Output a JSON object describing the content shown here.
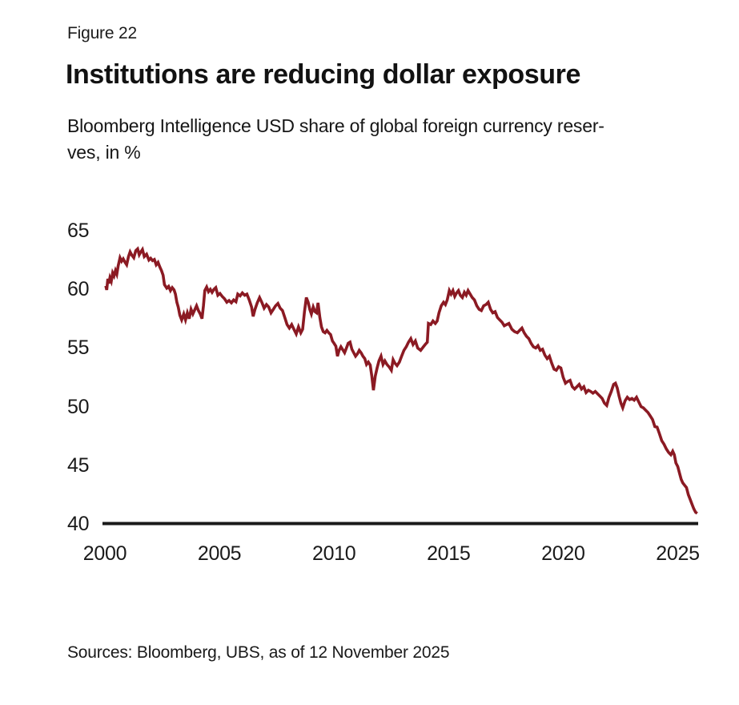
{
  "figure_label": "Figure 22",
  "title": "Institutions are reducing dollar exposure",
  "subtitle_line1": "Bloomberg Intelligence USD share of global foreign currency reser-",
  "subtitle_line2": "ves, in %",
  "source": "Sources: Bloomberg, UBS, as of 12 November 2025",
  "chart_data": {
    "type": "line",
    "title": "Institutions are reducing dollar exposure",
    "subtitle": "Bloomberg Intelligence USD share of global foreign currency reserves, in %",
    "xlabel": "",
    "ylabel": "USD share of global foreign currency reserves, %",
    "x_ticks": [
      "2000",
      "2005",
      "2010",
      "2015",
      "2020",
      "2025"
    ],
    "y_ticks": [
      "65",
      "60",
      "55",
      "50",
      "45",
      "40"
    ],
    "xlim": [
      2000,
      2025.9
    ],
    "ylim": [
      40,
      65
    ],
    "grid": false,
    "legend": "none",
    "line_color": "#8b1a23",
    "axis_color": "#1a1a1a",
    "series": [
      {
        "name": "USD share of global FX reserves (%)",
        "points": [
          [
            2000.04,
            60.3
          ],
          [
            2000.08,
            59.95
          ],
          [
            2000.13,
            60.9
          ],
          [
            2000.17,
            60.5
          ],
          [
            2000.22,
            61.0
          ],
          [
            2000.28,
            60.7
          ],
          [
            2000.34,
            61.4
          ],
          [
            2000.4,
            61.15
          ],
          [
            2000.46,
            61.6
          ],
          [
            2000.52,
            61.3
          ],
          [
            2000.58,
            62.0
          ],
          [
            2000.66,
            62.7
          ],
          [
            2000.73,
            62.4
          ],
          [
            2000.8,
            62.6
          ],
          [
            2000.88,
            62.3
          ],
          [
            2000.95,
            62.1
          ],
          [
            2001.03,
            62.8
          ],
          [
            2001.1,
            63.2
          ],
          [
            2001.18,
            62.9
          ],
          [
            2001.26,
            62.7
          ],
          [
            2001.35,
            63.3
          ],
          [
            2001.43,
            63.45
          ],
          [
            2001.5,
            62.95
          ],
          [
            2001.57,
            63.2
          ],
          [
            2001.64,
            63.4
          ],
          [
            2001.72,
            62.8
          ],
          [
            2001.82,
            63.0
          ],
          [
            2001.92,
            62.5
          ],
          [
            2002.0,
            62.65
          ],
          [
            2002.08,
            62.45
          ],
          [
            2002.16,
            62.55
          ],
          [
            2002.24,
            62.1
          ],
          [
            2002.32,
            62.3
          ],
          [
            2002.4,
            61.9
          ],
          [
            2002.47,
            61.6
          ],
          [
            2002.54,
            61.2
          ],
          [
            2002.6,
            60.4
          ],
          [
            2002.7,
            60.1
          ],
          [
            2002.78,
            60.25
          ],
          [
            2002.86,
            59.9
          ],
          [
            2002.94,
            60.15
          ],
          [
            2003.02,
            59.95
          ],
          [
            2003.08,
            59.6
          ],
          [
            2003.14,
            58.9
          ],
          [
            2003.2,
            58.5
          ],
          [
            2003.27,
            57.8
          ],
          [
            2003.35,
            57.4
          ],
          [
            2003.44,
            57.9
          ],
          [
            2003.52,
            57.4
          ],
          [
            2003.6,
            58.0
          ],
          [
            2003.68,
            57.5
          ],
          [
            2003.76,
            58.3
          ],
          [
            2003.84,
            57.9
          ],
          [
            2003.92,
            58.25
          ],
          [
            2004.0,
            58.6
          ],
          [
            2004.08,
            58.2
          ],
          [
            2004.16,
            57.9
          ],
          [
            2004.24,
            57.5
          ],
          [
            2004.3,
            58.6
          ],
          [
            2004.36,
            59.9
          ],
          [
            2004.44,
            60.2
          ],
          [
            2004.52,
            59.8
          ],
          [
            2004.6,
            60.0
          ],
          [
            2004.68,
            59.75
          ],
          [
            2004.76,
            60.0
          ],
          [
            2004.84,
            60.15
          ],
          [
            2004.93,
            59.5
          ],
          [
            2005.02,
            59.65
          ],
          [
            2005.12,
            59.4
          ],
          [
            2005.22,
            59.2
          ],
          [
            2005.32,
            58.9
          ],
          [
            2005.42,
            59.05
          ],
          [
            2005.52,
            58.85
          ],
          [
            2005.62,
            59.1
          ],
          [
            2005.72,
            58.95
          ],
          [
            2005.8,
            59.6
          ],
          [
            2005.9,
            59.45
          ],
          [
            2006.0,
            59.7
          ],
          [
            2006.1,
            59.5
          ],
          [
            2006.2,
            59.6
          ],
          [
            2006.3,
            59.1
          ],
          [
            2006.4,
            58.5
          ],
          [
            2006.47,
            57.7
          ],
          [
            2006.55,
            58.3
          ],
          [
            2006.65,
            58.85
          ],
          [
            2006.75,
            59.3
          ],
          [
            2006.85,
            58.9
          ],
          [
            2006.95,
            58.4
          ],
          [
            2007.05,
            58.7
          ],
          [
            2007.15,
            58.5
          ],
          [
            2007.25,
            58.0
          ],
          [
            2007.35,
            58.3
          ],
          [
            2007.45,
            58.6
          ],
          [
            2007.55,
            58.8
          ],
          [
            2007.65,
            58.4
          ],
          [
            2007.75,
            58.2
          ],
          [
            2007.85,
            57.6
          ],
          [
            2007.95,
            57.0
          ],
          [
            2008.05,
            56.7
          ],
          [
            2008.15,
            57.0
          ],
          [
            2008.25,
            56.6
          ],
          [
            2008.35,
            56.2
          ],
          [
            2008.45,
            56.8
          ],
          [
            2008.55,
            56.3
          ],
          [
            2008.63,
            56.6
          ],
          [
            2008.71,
            58.1
          ],
          [
            2008.79,
            59.3
          ],
          [
            2008.87,
            58.9
          ],
          [
            2008.94,
            58.3
          ],
          [
            2009.01,
            57.9
          ],
          [
            2009.09,
            58.5
          ],
          [
            2009.17,
            58.1
          ],
          [
            2009.24,
            58.0
          ],
          [
            2009.3,
            58.85
          ],
          [
            2009.38,
            57.6
          ],
          [
            2009.45,
            56.8
          ],
          [
            2009.53,
            56.4
          ],
          [
            2009.61,
            56.3
          ],
          [
            2009.69,
            56.5
          ],
          [
            2009.77,
            56.3
          ],
          [
            2009.85,
            56.15
          ],
          [
            2009.93,
            55.6
          ],
          [
            2010.0,
            55.4
          ],
          [
            2010.08,
            55.15
          ],
          [
            2010.15,
            54.3
          ],
          [
            2010.22,
            54.8
          ],
          [
            2010.3,
            55.1
          ],
          [
            2010.38,
            54.85
          ],
          [
            2010.46,
            54.6
          ],
          [
            2010.54,
            55.0
          ],
          [
            2010.62,
            55.4
          ],
          [
            2010.7,
            55.5
          ],
          [
            2010.78,
            54.9
          ],
          [
            2010.86,
            54.6
          ],
          [
            2010.94,
            54.3
          ],
          [
            2011.02,
            54.5
          ],
          [
            2011.1,
            54.8
          ],
          [
            2011.18,
            54.6
          ],
          [
            2011.26,
            54.3
          ],
          [
            2011.34,
            54.1
          ],
          [
            2011.42,
            53.6
          ],
          [
            2011.5,
            53.8
          ],
          [
            2011.58,
            53.55
          ],
          [
            2011.65,
            52.6
          ],
          [
            2011.72,
            51.4
          ],
          [
            2011.8,
            52.6
          ],
          [
            2011.88,
            53.3
          ],
          [
            2011.96,
            53.9
          ],
          [
            2012.05,
            54.3
          ],
          [
            2012.14,
            53.6
          ],
          [
            2012.22,
            53.9
          ],
          [
            2012.31,
            53.6
          ],
          [
            2012.4,
            53.4
          ],
          [
            2012.5,
            53.1
          ],
          [
            2012.58,
            54.0
          ],
          [
            2012.66,
            53.7
          ],
          [
            2012.75,
            53.5
          ],
          [
            2012.85,
            53.8
          ],
          [
            2012.95,
            54.3
          ],
          [
            2013.05,
            54.8
          ],
          [
            2013.15,
            55.1
          ],
          [
            2013.25,
            55.5
          ],
          [
            2013.35,
            55.8
          ],
          [
            2013.45,
            55.3
          ],
          [
            2013.55,
            55.6
          ],
          [
            2013.65,
            55.0
          ],
          [
            2013.78,
            54.8
          ],
          [
            2013.9,
            55.1
          ],
          [
            2014.0,
            55.35
          ],
          [
            2014.07,
            55.5
          ],
          [
            2014.12,
            57.1
          ],
          [
            2014.22,
            57.0
          ],
          [
            2014.32,
            57.3
          ],
          [
            2014.42,
            57.1
          ],
          [
            2014.5,
            57.3
          ],
          [
            2014.58,
            58.0
          ],
          [
            2014.68,
            58.6
          ],
          [
            2014.78,
            58.9
          ],
          [
            2014.86,
            58.7
          ],
          [
            2014.94,
            59.1
          ],
          [
            2015.03,
            59.9
          ],
          [
            2015.11,
            59.6
          ],
          [
            2015.19,
            59.9
          ],
          [
            2015.27,
            59.4
          ],
          [
            2015.35,
            59.7
          ],
          [
            2015.43,
            59.9
          ],
          [
            2015.51,
            59.5
          ],
          [
            2015.6,
            59.3
          ],
          [
            2015.69,
            59.75
          ],
          [
            2015.77,
            59.5
          ],
          [
            2015.85,
            59.9
          ],
          [
            2015.94,
            59.6
          ],
          [
            2016.03,
            59.3
          ],
          [
            2016.13,
            59.1
          ],
          [
            2016.23,
            58.6
          ],
          [
            2016.33,
            58.3
          ],
          [
            2016.43,
            58.2
          ],
          [
            2016.53,
            58.6
          ],
          [
            2016.63,
            58.7
          ],
          [
            2016.73,
            58.9
          ],
          [
            2016.83,
            58.3
          ],
          [
            2016.93,
            58.0
          ],
          [
            2017.03,
            58.1
          ],
          [
            2017.13,
            57.6
          ],
          [
            2017.23,
            57.4
          ],
          [
            2017.33,
            57.2
          ],
          [
            2017.43,
            56.9
          ],
          [
            2017.53,
            57.0
          ],
          [
            2017.63,
            57.1
          ],
          [
            2017.76,
            56.6
          ],
          [
            2017.88,
            56.4
          ],
          [
            2018.0,
            56.3
          ],
          [
            2018.1,
            56.5
          ],
          [
            2018.2,
            56.7
          ],
          [
            2018.3,
            56.3
          ],
          [
            2018.4,
            56.0
          ],
          [
            2018.5,
            55.8
          ],
          [
            2018.6,
            55.4
          ],
          [
            2018.7,
            55.1
          ],
          [
            2018.8,
            55.0
          ],
          [
            2018.9,
            55.2
          ],
          [
            2019.0,
            54.8
          ],
          [
            2019.1,
            54.9
          ],
          [
            2019.2,
            54.4
          ],
          [
            2019.3,
            54.1
          ],
          [
            2019.4,
            54.3
          ],
          [
            2019.5,
            53.7
          ],
          [
            2019.6,
            53.2
          ],
          [
            2019.7,
            53.1
          ],
          [
            2019.8,
            53.4
          ],
          [
            2019.9,
            53.3
          ],
          [
            2020.0,
            52.5
          ],
          [
            2020.1,
            52.0
          ],
          [
            2020.2,
            52.15
          ],
          [
            2020.3,
            52.25
          ],
          [
            2020.4,
            51.7
          ],
          [
            2020.5,
            51.5
          ],
          [
            2020.6,
            51.7
          ],
          [
            2020.7,
            51.9
          ],
          [
            2020.8,
            51.5
          ],
          [
            2020.9,
            51.7
          ],
          [
            2021.0,
            51.2
          ],
          [
            2021.1,
            51.4
          ],
          [
            2021.2,
            51.3
          ],
          [
            2021.3,
            51.15
          ],
          [
            2021.4,
            51.3
          ],
          [
            2021.5,
            51.1
          ],
          [
            2021.6,
            50.9
          ],
          [
            2021.7,
            50.7
          ],
          [
            2021.8,
            50.3
          ],
          [
            2021.9,
            50.1
          ],
          [
            2022.0,
            50.8
          ],
          [
            2022.1,
            51.3
          ],
          [
            2022.2,
            51.9
          ],
          [
            2022.28,
            52.0
          ],
          [
            2022.36,
            51.6
          ],
          [
            2022.44,
            50.9
          ],
          [
            2022.52,
            50.3
          ],
          [
            2022.6,
            49.9
          ],
          [
            2022.7,
            50.5
          ],
          [
            2022.8,
            50.8
          ],
          [
            2022.9,
            50.6
          ],
          [
            2023.0,
            50.7
          ],
          [
            2023.1,
            50.55
          ],
          [
            2023.2,
            50.8
          ],
          [
            2023.3,
            50.4
          ],
          [
            2023.4,
            50.0
          ],
          [
            2023.5,
            49.9
          ],
          [
            2023.6,
            49.7
          ],
          [
            2023.7,
            49.5
          ],
          [
            2023.8,
            49.2
          ],
          [
            2023.9,
            48.9
          ],
          [
            2024.0,
            48.3
          ],
          [
            2024.1,
            48.25
          ],
          [
            2024.2,
            47.7
          ],
          [
            2024.3,
            47.1
          ],
          [
            2024.4,
            46.8
          ],
          [
            2024.5,
            46.4
          ],
          [
            2024.6,
            46.1
          ],
          [
            2024.7,
            45.9
          ],
          [
            2024.78,
            46.2
          ],
          [
            2024.85,
            45.9
          ],
          [
            2024.92,
            45.2
          ],
          [
            2025.0,
            44.9
          ],
          [
            2025.08,
            44.3
          ],
          [
            2025.15,
            43.8
          ],
          [
            2025.22,
            43.5
          ],
          [
            2025.3,
            43.3
          ],
          [
            2025.38,
            43.1
          ],
          [
            2025.46,
            42.5
          ],
          [
            2025.54,
            42.1
          ],
          [
            2025.62,
            41.7
          ],
          [
            2025.7,
            41.3
          ],
          [
            2025.78,
            41.0
          ],
          [
            2025.85,
            40.9
          ]
        ]
      }
    ]
  }
}
